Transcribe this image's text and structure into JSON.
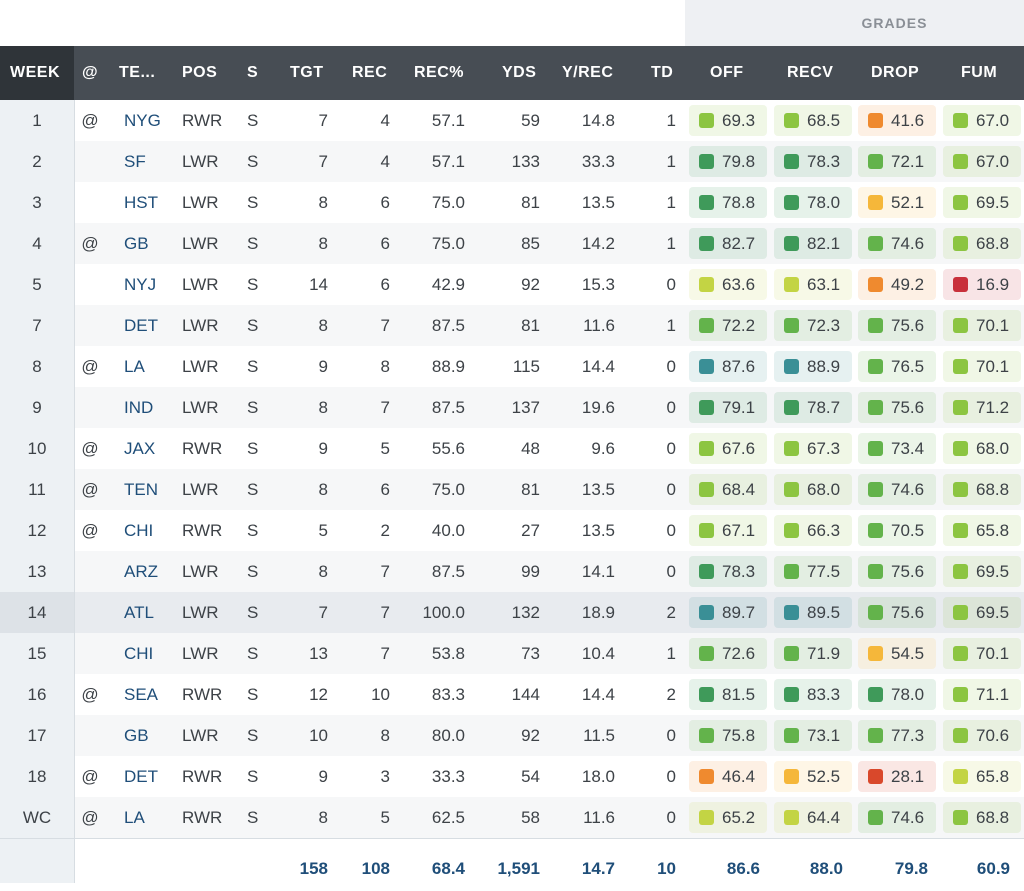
{
  "grades_header": "GRADES",
  "headers": {
    "week": "WEEK",
    "at": "@",
    "team": "TE...",
    "pos": "POS",
    "s": "S",
    "tgt": "TGT",
    "rec": "REC",
    "rec_pct": "REC%",
    "yds": "YDS",
    "y_rec": "Y/REC",
    "td": "TD",
    "off": "OFF",
    "recv": "RECV",
    "drop": "DROP",
    "fum": "FUM"
  },
  "grade_colors": {
    "teal": "#3a8f96",
    "darkgreen": "#3f9a5a",
    "green": "#63b34b",
    "lightgreen": "#8cc541",
    "yellowgreen": "#c3d444",
    "yellow": "#f5b73a",
    "orange": "#ef8a2f",
    "redorange": "#d9482b",
    "red": "#c8303b"
  },
  "rows": [
    {
      "week": "1",
      "at": "@",
      "team": "NYG",
      "pos": "RWR",
      "s": "S",
      "tgt": "7",
      "rec": "4",
      "rec_pct": "57.1",
      "yds": "59",
      "y_rec": "14.8",
      "td": "1",
      "off": "69.3",
      "off_c": "lightgreen",
      "recv": "68.5",
      "recv_c": "lightgreen",
      "drop": "41.6",
      "drop_c": "orange",
      "fum": "67.0",
      "fum_c": "lightgreen"
    },
    {
      "week": "2",
      "at": "",
      "team": "SF",
      "pos": "LWR",
      "s": "S",
      "tgt": "7",
      "rec": "4",
      "rec_pct": "57.1",
      "yds": "133",
      "y_rec": "33.3",
      "td": "1",
      "off": "79.8",
      "off_c": "darkgreen",
      "recv": "78.3",
      "recv_c": "darkgreen",
      "drop": "72.1",
      "drop_c": "green",
      "fum": "67.0",
      "fum_c": "lightgreen"
    },
    {
      "week": "3",
      "at": "",
      "team": "HST",
      "pos": "LWR",
      "s": "S",
      "tgt": "8",
      "rec": "6",
      "rec_pct": "75.0",
      "yds": "81",
      "y_rec": "13.5",
      "td": "1",
      "off": "78.8",
      "off_c": "darkgreen",
      "recv": "78.0",
      "recv_c": "darkgreen",
      "drop": "52.1",
      "drop_c": "yellow",
      "fum": "69.5",
      "fum_c": "lightgreen"
    },
    {
      "week": "4",
      "at": "@",
      "team": "GB",
      "pos": "LWR",
      "s": "S",
      "tgt": "8",
      "rec": "6",
      "rec_pct": "75.0",
      "yds": "85",
      "y_rec": "14.2",
      "td": "1",
      "off": "82.7",
      "off_c": "darkgreen",
      "recv": "82.1",
      "recv_c": "darkgreen",
      "drop": "74.6",
      "drop_c": "green",
      "fum": "68.8",
      "fum_c": "lightgreen"
    },
    {
      "week": "5",
      "at": "",
      "team": "NYJ",
      "pos": "LWR",
      "s": "S",
      "tgt": "14",
      "rec": "6",
      "rec_pct": "42.9",
      "yds": "92",
      "y_rec": "15.3",
      "td": "0",
      "off": "63.6",
      "off_c": "yellowgreen",
      "recv": "63.1",
      "recv_c": "yellowgreen",
      "drop": "49.2",
      "drop_c": "orange",
      "fum": "16.9",
      "fum_c": "red"
    },
    {
      "week": "7",
      "at": "",
      "team": "DET",
      "pos": "LWR",
      "s": "S",
      "tgt": "8",
      "rec": "7",
      "rec_pct": "87.5",
      "yds": "81",
      "y_rec": "11.6",
      "td": "1",
      "off": "72.2",
      "off_c": "green",
      "recv": "72.3",
      "recv_c": "green",
      "drop": "75.6",
      "drop_c": "green",
      "fum": "70.1",
      "fum_c": "lightgreen"
    },
    {
      "week": "8",
      "at": "@",
      "team": "LA",
      "pos": "LWR",
      "s": "S",
      "tgt": "9",
      "rec": "8",
      "rec_pct": "88.9",
      "yds": "115",
      "y_rec": "14.4",
      "td": "0",
      "off": "87.6",
      "off_c": "teal",
      "recv": "88.9",
      "recv_c": "teal",
      "drop": "76.5",
      "drop_c": "green",
      "fum": "70.1",
      "fum_c": "lightgreen"
    },
    {
      "week": "9",
      "at": "",
      "team": "IND",
      "pos": "LWR",
      "s": "S",
      "tgt": "8",
      "rec": "7",
      "rec_pct": "87.5",
      "yds": "137",
      "y_rec": "19.6",
      "td": "0",
      "off": "79.1",
      "off_c": "darkgreen",
      "recv": "78.7",
      "recv_c": "darkgreen",
      "drop": "75.6",
      "drop_c": "green",
      "fum": "71.2",
      "fum_c": "lightgreen"
    },
    {
      "week": "10",
      "at": "@",
      "team": "JAX",
      "pos": "RWR",
      "s": "S",
      "tgt": "9",
      "rec": "5",
      "rec_pct": "55.6",
      "yds": "48",
      "y_rec": "9.6",
      "td": "0",
      "off": "67.6",
      "off_c": "lightgreen",
      "recv": "67.3",
      "recv_c": "lightgreen",
      "drop": "73.4",
      "drop_c": "green",
      "fum": "68.0",
      "fum_c": "lightgreen"
    },
    {
      "week": "11",
      "at": "@",
      "team": "TEN",
      "pos": "LWR",
      "s": "S",
      "tgt": "8",
      "rec": "6",
      "rec_pct": "75.0",
      "yds": "81",
      "y_rec": "13.5",
      "td": "0",
      "off": "68.4",
      "off_c": "lightgreen",
      "recv": "68.0",
      "recv_c": "lightgreen",
      "drop": "74.6",
      "drop_c": "green",
      "fum": "68.8",
      "fum_c": "lightgreen"
    },
    {
      "week": "12",
      "at": "@",
      "team": "CHI",
      "pos": "RWR",
      "s": "S",
      "tgt": "5",
      "rec": "2",
      "rec_pct": "40.0",
      "yds": "27",
      "y_rec": "13.5",
      "td": "0",
      "off": "67.1",
      "off_c": "lightgreen",
      "recv": "66.3",
      "recv_c": "lightgreen",
      "drop": "70.5",
      "drop_c": "green",
      "fum": "65.8",
      "fum_c": "lightgreen"
    },
    {
      "week": "13",
      "at": "",
      "team": "ARZ",
      "pos": "LWR",
      "s": "S",
      "tgt": "8",
      "rec": "7",
      "rec_pct": "87.5",
      "yds": "99",
      "y_rec": "14.1",
      "td": "0",
      "off": "78.3",
      "off_c": "darkgreen",
      "recv": "77.5",
      "recv_c": "green",
      "drop": "75.6",
      "drop_c": "green",
      "fum": "69.5",
      "fum_c": "lightgreen"
    },
    {
      "week": "14",
      "at": "",
      "team": "ATL",
      "pos": "LWR",
      "s": "S",
      "tgt": "7",
      "rec": "7",
      "rec_pct": "100.0",
      "yds": "132",
      "y_rec": "18.9",
      "td": "2",
      "off": "89.7",
      "off_c": "teal",
      "recv": "89.5",
      "recv_c": "teal",
      "drop": "75.6",
      "drop_c": "green",
      "fum": "69.5",
      "fum_c": "lightgreen",
      "highlight": true
    },
    {
      "week": "15",
      "at": "",
      "team": "CHI",
      "pos": "LWR",
      "s": "S",
      "tgt": "13",
      "rec": "7",
      "rec_pct": "53.8",
      "yds": "73",
      "y_rec": "10.4",
      "td": "1",
      "off": "72.6",
      "off_c": "green",
      "recv": "71.9",
      "recv_c": "green",
      "drop": "54.5",
      "drop_c": "yellow",
      "fum": "70.1",
      "fum_c": "lightgreen"
    },
    {
      "week": "16",
      "at": "@",
      "team": "SEA",
      "pos": "RWR",
      "s": "S",
      "tgt": "12",
      "rec": "10",
      "rec_pct": "83.3",
      "yds": "144",
      "y_rec": "14.4",
      "td": "2",
      "off": "81.5",
      "off_c": "darkgreen",
      "recv": "83.3",
      "recv_c": "darkgreen",
      "drop": "78.0",
      "drop_c": "darkgreen",
      "fum": "71.1",
      "fum_c": "lightgreen"
    },
    {
      "week": "17",
      "at": "",
      "team": "GB",
      "pos": "LWR",
      "s": "S",
      "tgt": "10",
      "rec": "8",
      "rec_pct": "80.0",
      "yds": "92",
      "y_rec": "11.5",
      "td": "0",
      "off": "75.8",
      "off_c": "green",
      "recv": "73.1",
      "recv_c": "green",
      "drop": "77.3",
      "drop_c": "green",
      "fum": "70.6",
      "fum_c": "lightgreen"
    },
    {
      "week": "18",
      "at": "@",
      "team": "DET",
      "pos": "RWR",
      "s": "S",
      "tgt": "9",
      "rec": "3",
      "rec_pct": "33.3",
      "yds": "54",
      "y_rec": "18.0",
      "td": "0",
      "off": "46.4",
      "off_c": "orange",
      "recv": "52.5",
      "recv_c": "yellow",
      "drop": "28.1",
      "drop_c": "redorange",
      "fum": "65.8",
      "fum_c": "yellowgreen"
    },
    {
      "week": "WC",
      "at": "@",
      "team": "LA",
      "pos": "RWR",
      "s": "S",
      "tgt": "8",
      "rec": "5",
      "rec_pct": "62.5",
      "yds": "58",
      "y_rec": "11.6",
      "td": "0",
      "off": "65.2",
      "off_c": "yellowgreen",
      "recv": "64.4",
      "recv_c": "yellowgreen",
      "drop": "74.6",
      "drop_c": "green",
      "fum": "68.8",
      "fum_c": "lightgreen"
    }
  ],
  "totals": {
    "tgt": "158",
    "rec": "108",
    "rec_pct": "68.4",
    "yds": "1,591",
    "y_rec": "14.7",
    "td": "10",
    "off": "86.6",
    "recv": "88.0",
    "drop": "79.8",
    "fum": "60.9"
  }
}
